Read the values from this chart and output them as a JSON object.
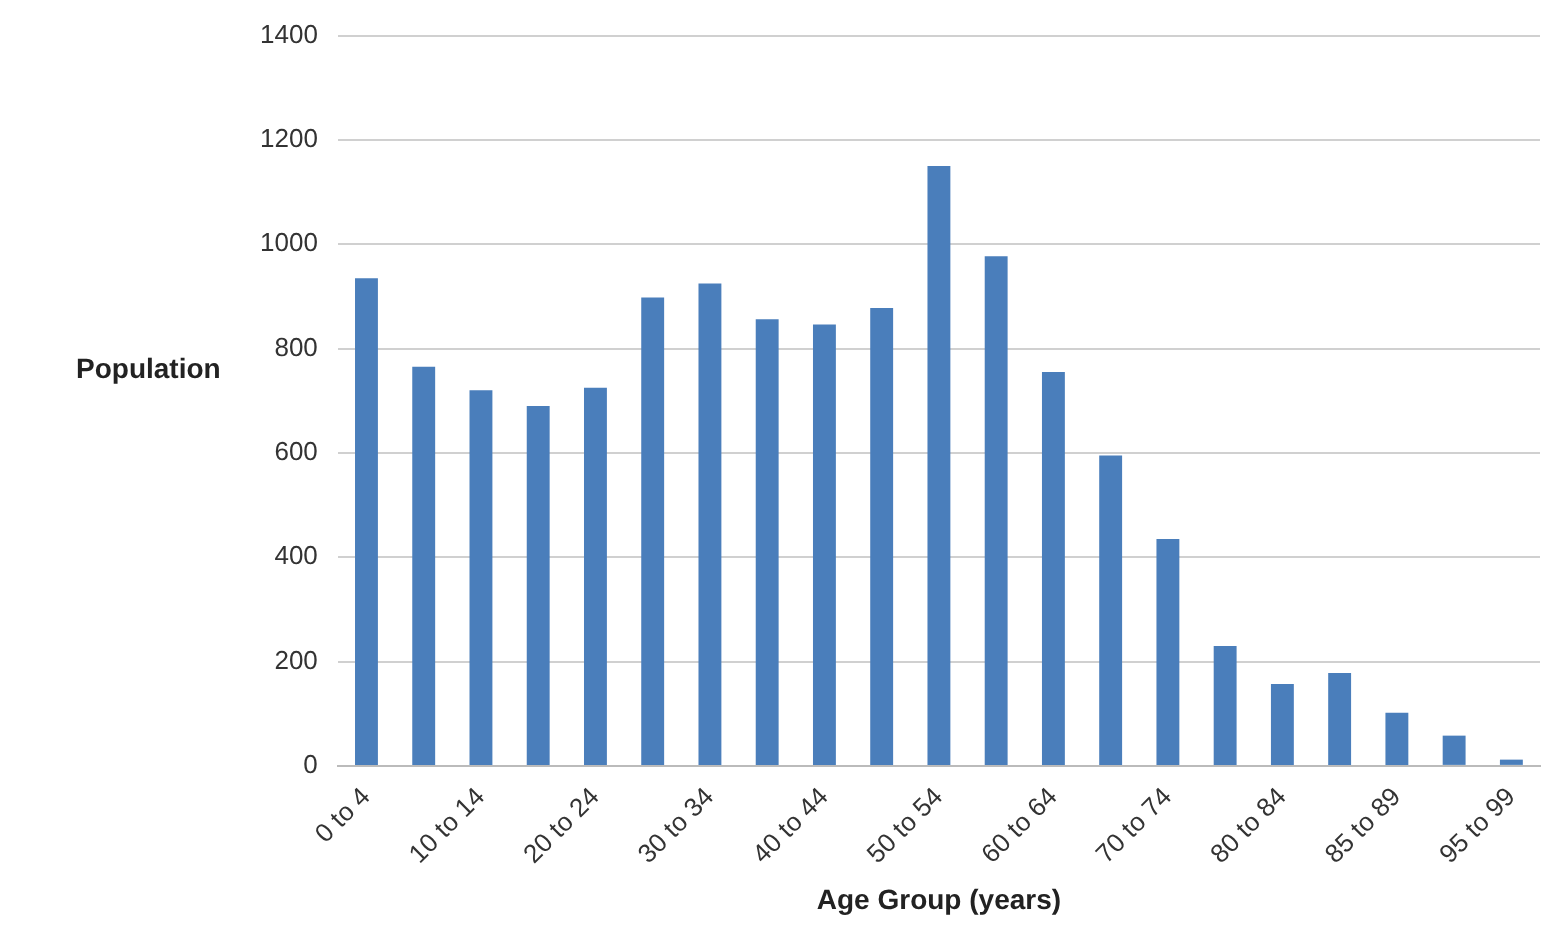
{
  "chart_data": {
    "type": "bar",
    "xlabel": "Age Group (years)",
    "ylabel": "Population",
    "categories": [
      "0 to 4",
      null,
      "10 to 14",
      null,
      "20 to 24",
      null,
      "30 to 34",
      null,
      "40 to 44",
      null,
      "50 to 54",
      null,
      "60 to 64",
      null,
      "70 to 74",
      null,
      "80 to 84",
      null,
      "85 to 89",
      null,
      "95 to 99"
    ],
    "values": [
      935,
      765,
      720,
      690,
      725,
      898,
      925,
      856,
      846,
      878,
      1150,
      977,
      755,
      595,
      435,
      230,
      157,
      178,
      102,
      58,
      12
    ],
    "color": "#4a7ebb",
    "ylim": [
      0,
      1400
    ],
    "yticks": [
      0,
      200,
      400,
      600,
      800,
      1000,
      1200,
      1400
    ],
    "grid": "y",
    "legend": false
  }
}
